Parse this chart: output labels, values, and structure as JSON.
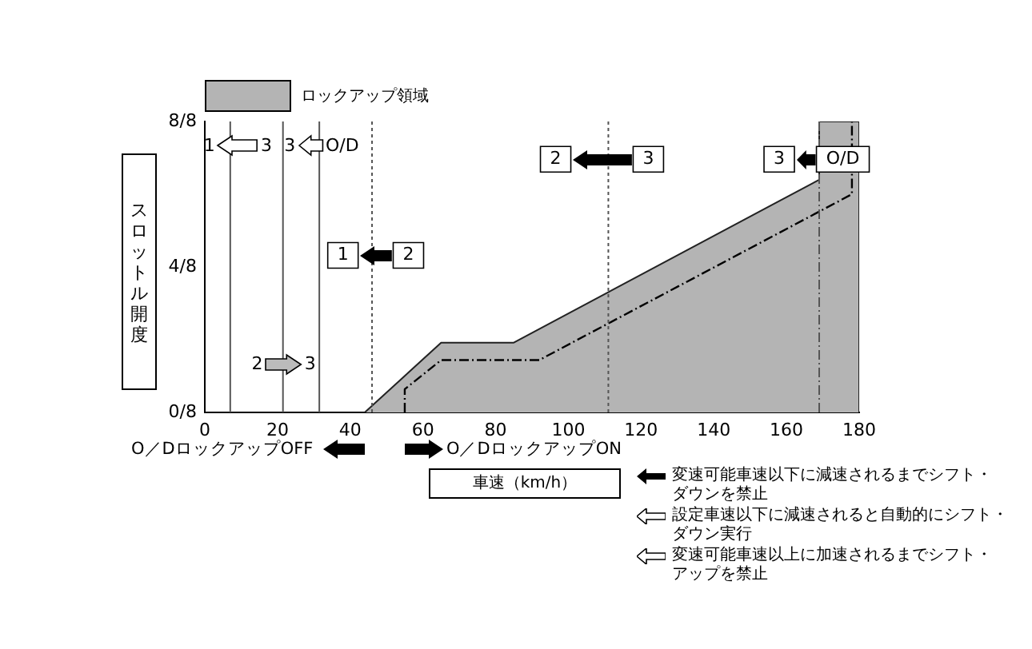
{
  "chart_data": {
    "type": "line",
    "xlabel": "車速（km/h）",
    "ylabel": "スロットル開度",
    "xlim": [
      0,
      180
    ],
    "xticks": [
      0,
      20,
      40,
      60,
      80,
      100,
      120,
      140,
      160,
      180
    ],
    "ylim": [
      0,
      1
    ],
    "yticks": [
      {
        "value": 0,
        "label": "0/8"
      },
      {
        "value": 0.5,
        "label": "4/8"
      },
      {
        "value": 1,
        "label": "8/8"
      }
    ],
    "grid": false,
    "legend": "top left",
    "marker": "none",
    "series": [
      {
        "name": "ロックアップ領域",
        "type": "area",
        "color": "#b4b4b4",
        "x": [
          44,
          65,
          85,
          169,
          169,
          180,
          180
        ],
        "values": [
          0,
          0.24,
          0.24,
          0.8,
          1,
          1,
          0
        ]
      },
      {
        "type": "line",
        "line_style": "dashed",
        "color": "#000000",
        "x": [
          55,
          55,
          65,
          92,
          178,
          178
        ],
        "values": [
          0,
          0.08,
          0.18,
          0.18,
          0.75,
          1
        ]
      }
    ],
    "ref_lines": [
      {
        "axis": "x",
        "value": 7,
        "line_style": "solid",
        "color": "#555555"
      },
      {
        "axis": "x",
        "value": 21.5,
        "line_style": "solid",
        "color": "#555555"
      },
      {
        "axis": "x",
        "value": 31.5,
        "line_style": "solid",
        "color": "#555555"
      },
      {
        "axis": "x",
        "value": 46,
        "line_style": "dotted",
        "color": "#555555"
      },
      {
        "axis": "x",
        "value": 111,
        "line_style": "dotted",
        "color": "#555555"
      },
      {
        "axis": "x",
        "value": 169,
        "line_style": "dashed",
        "color": "#555555"
      }
    ],
    "annotations": [
      {
        "text": "1",
        "x": 38,
        "y": 0.54
      },
      {
        "text": "2",
        "x": 56,
        "y": 0.54
      },
      {
        "text": "2",
        "x": 96.5,
        "y": 0.87
      },
      {
        "text": "3",
        "x": 122,
        "y": 0.87
      },
      {
        "text": "3",
        "x": 158,
        "y": 0.87
      },
      {
        "text": "O/D",
        "x": 175.5,
        "y": 0.87
      },
      "1",
      "3",
      "3",
      "O/D",
      "2",
      "3",
      "O／DロックアップOFF",
      "O／DロックアップON",
      "変速可能車速以下に減速されるまでシフト・ダウンを禁止",
      "設定車速以下に減速されると自動的にシフト・ダウン実行",
      "変速可能車速以上に加速されるまでシフト・アップを禁止"
    ]
  }
}
